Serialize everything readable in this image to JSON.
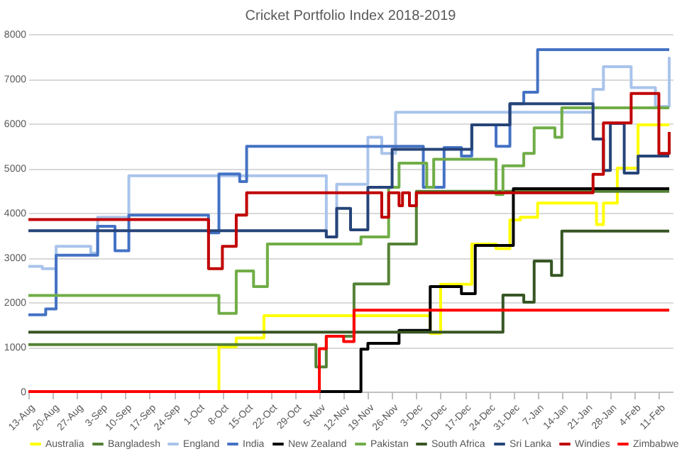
{
  "chart_data": {
    "type": "step",
    "title": "Cricket Portfolio Index  2018-2019",
    "xlim": [
      "2018-08-13",
      "2019-02-15"
    ],
    "xticks": [
      {
        "value": "2018-08-13",
        "label": "13-Aug"
      },
      {
        "value": "2018-08-20",
        "label": "20-Aug"
      },
      {
        "value": "2018-08-27",
        "label": "27-Aug"
      },
      {
        "value": "2018-09-03",
        "label": "3-Sep"
      },
      {
        "value": "2018-09-10",
        "label": "10-Sep"
      },
      {
        "value": "2018-09-17",
        "label": "17-Sep"
      },
      {
        "value": "2018-09-24",
        "label": "24-Sep"
      },
      {
        "value": "2018-10-01",
        "label": "1-Oct"
      },
      {
        "value": "2018-10-08",
        "label": "8-Oct"
      },
      {
        "value": "2018-10-15",
        "label": "15-Oct"
      },
      {
        "value": "2018-10-22",
        "label": "22-Oct"
      },
      {
        "value": "2018-10-29",
        "label": "29-Oct"
      },
      {
        "value": "2018-11-05",
        "label": "5-Nov"
      },
      {
        "value": "2018-11-12",
        "label": "12-Nov"
      },
      {
        "value": "2018-11-19",
        "label": "19-Nov"
      },
      {
        "value": "2018-11-26",
        "label": "26-Nov"
      },
      {
        "value": "2018-12-03",
        "label": "3-Dec"
      },
      {
        "value": "2018-12-10",
        "label": "10-Dec"
      },
      {
        "value": "2018-12-17",
        "label": "17-Dec"
      },
      {
        "value": "2018-12-24",
        "label": "24-Dec"
      },
      {
        "value": "2018-12-31",
        "label": "31-Dec"
      },
      {
        "value": "2019-01-07",
        "label": "7-Jan"
      },
      {
        "value": "2019-01-14",
        "label": "14-Jan"
      },
      {
        "value": "2019-01-21",
        "label": "21-Jan"
      },
      {
        "value": "2019-01-28",
        "label": "28-Jan"
      },
      {
        "value": "2019-02-04",
        "label": "4-Feb"
      },
      {
        "value": "2019-02-11",
        "label": "11-Feb"
      }
    ],
    "ylim": [
      0,
      8000
    ],
    "yticks": [
      0,
      1000,
      2000,
      3000,
      4000,
      5000,
      6000,
      7000,
      8000
    ],
    "grid": "y",
    "legend": "bottom",
    "series": [
      {
        "name": "Australia",
        "color": "#ffff00",
        "x": [
          "2018-08-13",
          "2018-10-07",
          "2018-10-12",
          "2018-10-20",
          "2018-12-07",
          "2018-12-10",
          "2018-12-19",
          "2018-12-26",
          "2018-12-30",
          "2019-01-02",
          "2019-01-07",
          "2019-01-24",
          "2019-01-26",
          "2019-01-30",
          "2019-02-05",
          "2019-02-14"
        ],
        "values": [
          0,
          1000,
          1200,
          1700,
          1300,
          2400,
          3300,
          3200,
          3840,
          3900,
          4220,
          3740,
          4220,
          5000,
          5970,
          5970
        ]
      },
      {
        "name": "Bangladesh",
        "color": "#548235",
        "x": [
          "2018-08-13",
          "2018-11-04",
          "2018-11-07",
          "2018-11-15",
          "2018-11-25",
          "2018-12-03",
          "2019-02-14"
        ],
        "values": [
          1050,
          550,
          1240,
          2410,
          3300,
          4480,
          4480
        ]
      },
      {
        "name": "England",
        "color": "#a9c4eb",
        "x": [
          "2018-08-13",
          "2018-08-17",
          "2018-08-21",
          "2018-08-31",
          "2018-09-02",
          "2018-09-11",
          "2018-11-07",
          "2018-11-10",
          "2018-11-19",
          "2018-11-23",
          "2018-11-27",
          "2019-01-23",
          "2019-01-26",
          "2019-02-03",
          "2019-02-10",
          "2019-02-14"
        ],
        "values": [
          2800,
          2750,
          3250,
          3100,
          3900,
          4830,
          3460,
          4640,
          5690,
          5330,
          6250,
          6760,
          7270,
          6800,
          6380,
          7490
        ]
      },
      {
        "name": "India",
        "color": "#4472c4",
        "x": [
          "2018-08-13",
          "2018-08-18",
          "2018-08-21",
          "2018-09-02",
          "2018-09-07",
          "2018-09-11",
          "2018-10-04",
          "2018-10-07",
          "2018-10-13",
          "2018-10-15",
          "2018-12-05",
          "2018-12-11",
          "2018-12-16",
          "2018-12-19",
          "2018-12-26",
          "2018-12-30",
          "2019-01-03",
          "2019-01-07",
          "2019-02-14"
        ],
        "values": [
          1720,
          1850,
          3050,
          3700,
          3150,
          3950,
          3550,
          4870,
          4700,
          5490,
          4570,
          5460,
          5270,
          5970,
          5490,
          6440,
          6700,
          7650,
          7650
        ]
      },
      {
        "name": "New Zealand",
        "color": "#000000",
        "x": [
          "2018-08-13",
          "2018-11-17",
          "2018-11-19",
          "2018-11-28",
          "2018-12-07",
          "2018-12-16",
          "2018-12-20",
          "2018-12-31",
          "2019-02-14"
        ],
        "values": [
          0,
          950,
          1080,
          1370,
          2350,
          2190,
          3270,
          4540,
          4540
        ]
      },
      {
        "name": "Pakistan",
        "color": "#70ad47",
        "x": [
          "2018-08-13",
          "2018-10-07",
          "2018-10-12",
          "2018-10-17",
          "2018-10-21",
          "2018-11-17",
          "2018-11-25",
          "2018-11-28",
          "2018-12-06",
          "2018-12-08",
          "2018-12-26",
          "2018-12-28",
          "2019-01-03",
          "2019-01-06",
          "2019-01-12",
          "2019-01-14",
          "2019-02-14"
        ],
        "values": [
          2150,
          1750,
          2700,
          2350,
          3300,
          3460,
          4570,
          5110,
          4570,
          5200,
          4410,
          5050,
          5330,
          5900,
          5690,
          6350,
          6350
        ]
      },
      {
        "name": "South Africa",
        "color": "#375623",
        "x": [
          "2018-08-13",
          "2018-12-28",
          "2019-01-03",
          "2019-01-06",
          "2019-01-11",
          "2019-01-14",
          "2019-02-14"
        ],
        "values": [
          1330,
          2160,
          2000,
          2920,
          2600,
          3590,
          3590
        ]
      },
      {
        "name": "Sri Lanka",
        "color": "#264478",
        "x": [
          "2018-08-13",
          "2018-11-07",
          "2018-11-10",
          "2018-11-14",
          "2018-11-19",
          "2018-11-26",
          "2018-12-19",
          "2018-12-30",
          "2019-01-23",
          "2019-01-26",
          "2019-01-28",
          "2019-02-01",
          "2019-02-05",
          "2019-02-14"
        ],
        "values": [
          3600,
          3460,
          4100,
          3620,
          4570,
          5420,
          5970,
          6440,
          5650,
          4950,
          6000,
          4890,
          5270,
          5270
        ]
      },
      {
        "name": "Windies",
        "color": "#c00000",
        "x": [
          "2018-08-13",
          "2018-10-04",
          "2018-10-08",
          "2018-10-12",
          "2018-10-15",
          "2018-11-23",
          "2018-11-25",
          "2018-11-28",
          "2018-11-29",
          "2018-12-01",
          "2018-12-03",
          "2019-01-23",
          "2019-01-26",
          "2019-02-03",
          "2019-02-11",
          "2019-02-14"
        ],
        "values": [
          3850,
          2750,
          3250,
          3950,
          4450,
          3900,
          4450,
          4160,
          4450,
          4160,
          4450,
          4860,
          6010,
          6670,
          5330,
          5810
        ]
      },
      {
        "name": "Zimbabwe",
        "color": "#ff0000",
        "x": [
          "2018-08-13",
          "2018-11-05",
          "2018-11-07",
          "2018-11-12",
          "2018-11-15",
          "2019-02-14"
        ],
        "values": [
          0,
          960,
          1240,
          1120,
          1820,
          1820
        ]
      }
    ]
  }
}
